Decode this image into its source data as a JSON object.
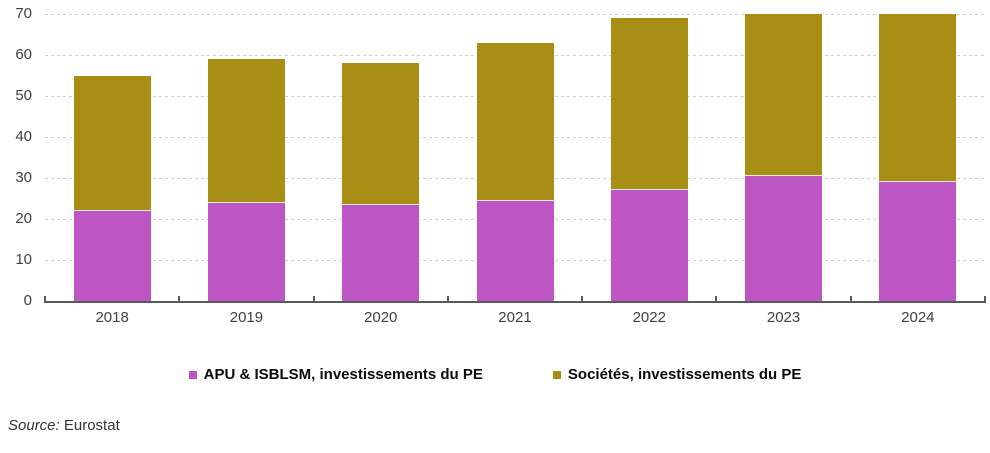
{
  "chart_data": {
    "type": "bar",
    "stacked": true,
    "title": "",
    "xlabel": "",
    "ylabel": "",
    "categories": [
      "2018",
      "2019",
      "2020",
      "2021",
      "2022",
      "2023",
      "2024"
    ],
    "series": [
      {
        "name": "APU & ISBLSM, investissements du PE",
        "color": "#BD55C4",
        "values": [
          22,
          24,
          23.5,
          24.5,
          27,
          30.5,
          29
        ]
      },
      {
        "name": "Sociétés, investissements du PE",
        "color": "#A98E16",
        "values": [
          33,
          35,
          34.5,
          38.5,
          42,
          39.5,
          41
        ]
      }
    ],
    "ylim": [
      0,
      70
    ],
    "yticks": [
      0,
      10,
      20,
      30,
      40,
      50,
      60,
      70
    ],
    "grid": "horizontal-dashed",
    "legend_position": "bottom",
    "axis_color": "#595959",
    "tick_label_color": "#3f3f3f"
  },
  "source": {
    "label": "Source:",
    "value": "Eurostat"
  }
}
